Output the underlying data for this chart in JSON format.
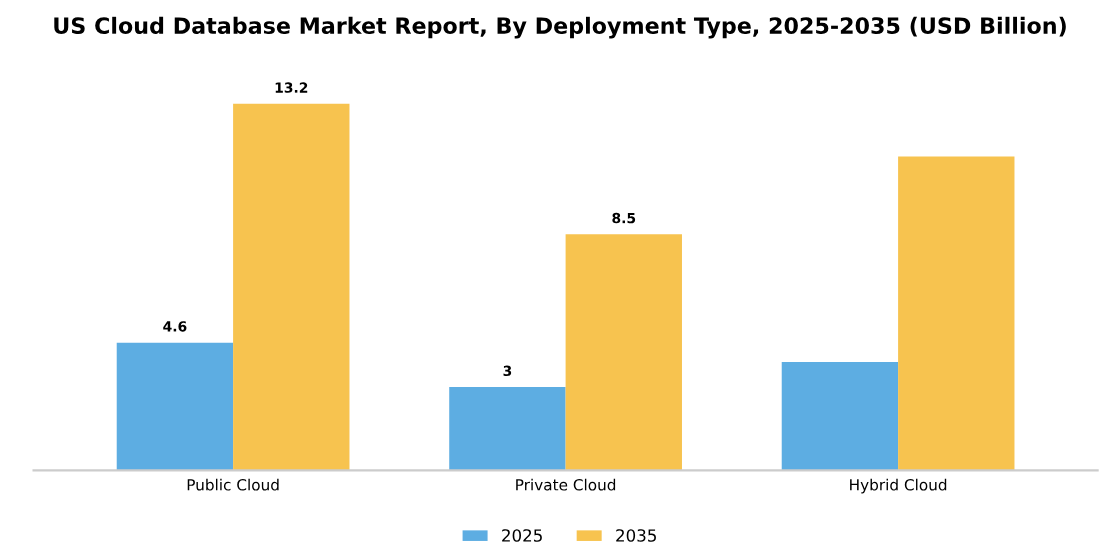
{
  "chart_data": {
    "type": "bar",
    "title": "US Cloud Database Market Report, By Deployment Type, 2025-2035 (USD Billion)",
    "categories": [
      "Public Cloud",
      "Private Cloud",
      "Hybrid Cloud"
    ],
    "series": [
      {
        "name": "2025",
        "color": "#5dade2",
        "values": [
          4.6,
          3.0,
          3.9
        ],
        "value_labels": [
          "4.6",
          "3",
          null
        ]
      },
      {
        "name": "2035",
        "color": "#f7c34f",
        "values": [
          13.2,
          8.5,
          11.3
        ],
        "value_labels": [
          "13.2",
          "8.5",
          null
        ]
      }
    ],
    "tick_labels": "x",
    "grid": false,
    "legend": "bottom"
  }
}
